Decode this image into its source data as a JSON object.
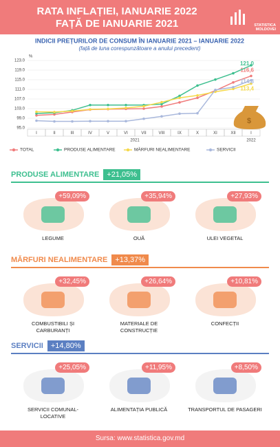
{
  "header": {
    "title_line1": "RATA INFLAȚIEI, IANUARIE 2022",
    "title_line2": "FAȚĂ DE IANUARIE 2021",
    "logo": "STATISTICA MOLDOVEI"
  },
  "chart_data": {
    "type": "line",
    "title": "INDICII PREȚURILOR DE CONSUM ÎN IANUARIE 2021 – IANUARIE 2022",
    "subtitle": "(față de luna corespunzătoare a anului precedent)",
    "y_unit": "%",
    "categories": [
      "I",
      "II",
      "III",
      "IV",
      "V",
      "VI",
      "VII",
      "VIII",
      "IX",
      "X",
      "XI",
      "XII",
      "I"
    ],
    "years": [
      "2021",
      "2022"
    ],
    "ylim": [
      95,
      123
    ],
    "yticks": [
      {
        "value": 95,
        "label": "95.0"
      },
      {
        "value": 99,
        "label": "99.0"
      },
      {
        "value": 103,
        "label": "103.0"
      },
      {
        "value": 107,
        "label": "107.0"
      },
      {
        "value": 111,
        "label": "111.0"
      },
      {
        "value": 115,
        "label": "115.0"
      },
      {
        "value": 119,
        "label": "119.0"
      },
      {
        "value": 123,
        "label": "123.0"
      }
    ],
    "grid": true,
    "series": [
      {
        "name": "TOTAL",
        "color": "#f07b7b",
        "values": [
          100.2,
          100.6,
          101.6,
          102.6,
          102.8,
          102.9,
          103.0,
          103.9,
          105.6,
          107.5,
          110.5,
          113.9,
          116.6
        ],
        "value_labels": [
          null,
          null,
          null,
          null,
          null,
          null,
          null,
          null,
          null,
          null,
          null,
          null,
          "116,6"
        ]
      },
      {
        "name": "PRODUSE ALIMENTARE",
        "color": "#3dbf8f",
        "values": [
          101.0,
          101.3,
          102.3,
          104.5,
          104.5,
          104.5,
          104.5,
          104.9,
          108.3,
          112.6,
          115.1,
          117.7,
          121.0
        ],
        "value_labels": [
          null,
          null,
          null,
          null,
          null,
          null,
          null,
          null,
          null,
          null,
          null,
          null,
          "121,0"
        ]
      },
      {
        "name": "MĂRFURI NEALIMENTARE",
        "color": "#f5d94a",
        "values": [
          101.7,
          101.6,
          102.0,
          102.7,
          102.9,
          103.3,
          104.0,
          105.7,
          107.5,
          108.5,
          110.0,
          111.2,
          113.4
        ],
        "value_labels": [
          null,
          null,
          null,
          null,
          null,
          null,
          null,
          null,
          null,
          null,
          null,
          null,
          "113,4"
        ]
      },
      {
        "name": "SERVICII",
        "color": "#a9b8dc",
        "values": [
          98.0,
          97.7,
          97.7,
          97.8,
          97.8,
          97.8,
          98.8,
          99.8,
          100.9,
          101.1,
          110.8,
          111.9,
          114.8
        ],
        "value_labels": [
          null,
          null,
          null,
          null,
          null,
          null,
          null,
          null,
          null,
          null,
          null,
          null,
          "114,8"
        ]
      }
    ]
  },
  "sections": [
    {
      "title": "PRODUSE ALIMENTARE",
      "change": "+21,05%",
      "color": "#3dbf8f",
      "items": [
        {
          "label": "LEGUME",
          "change": "+59,09%"
        },
        {
          "label": "OUĂ",
          "change": "+35,94%"
        },
        {
          "label": "ULEI VEGETAL",
          "change": "+27,93%"
        }
      ]
    },
    {
      "title": "MĂRFURI NEALIMENTARE",
      "change": "+13,37%",
      "color": "#f08a4b",
      "items": [
        {
          "label": "COMBUSTIBILI ȘI CARBURANȚI",
          "change": "+32,45%"
        },
        {
          "label": "MATERIALE DE CONSTRUCȚIE",
          "change": "+26,64%"
        },
        {
          "label": "CONFECȚII",
          "change": "+10,81%"
        }
      ]
    },
    {
      "title": "SERVICII",
      "change": "+14,80%",
      "color": "#5b7fc2",
      "items": [
        {
          "label": "SERVICII COMUNAL-LOCATIVE",
          "change": "+25,05%"
        },
        {
          "label": "ALIMENTAȚIA PUBLICĂ",
          "change": "+11,95%"
        },
        {
          "label": "TRANSPORTUL DE PASAGERI",
          "change": "+8,50%"
        }
      ]
    }
  ],
  "footer": "Sursa: www.statistica.gov.md"
}
